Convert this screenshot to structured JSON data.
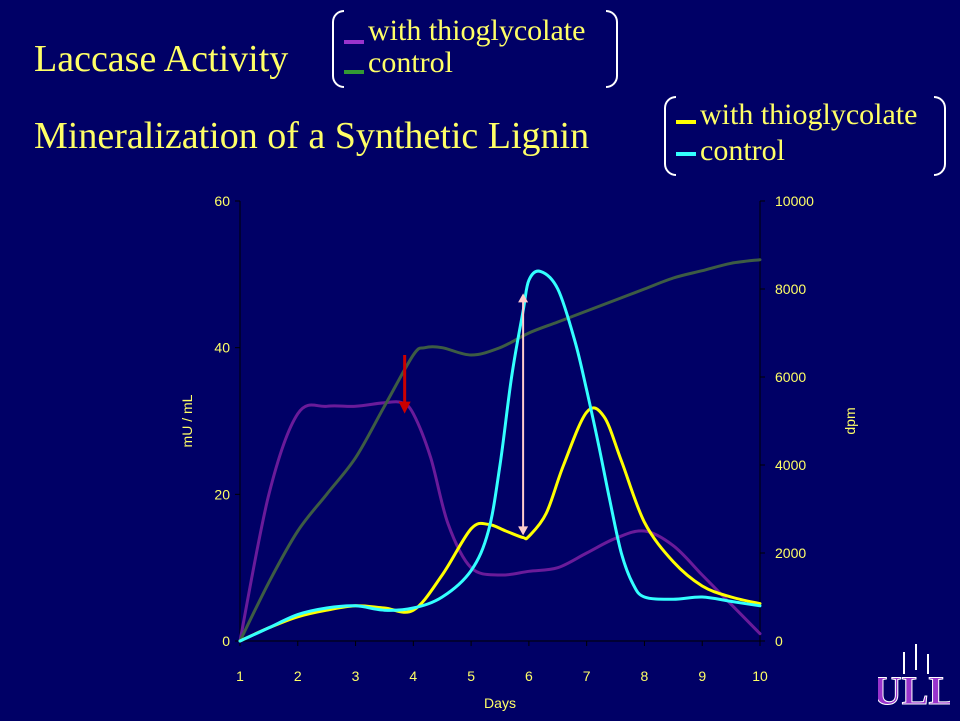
{
  "titles": {
    "laccase": "Laccase Activity",
    "mineralization": "Mineralization of a Synthetic Lignin"
  },
  "legend_laccase": [
    {
      "label": "with thioglycolate",
      "color": "#9933cc"
    },
    {
      "label": "control",
      "color": "#336633"
    }
  ],
  "legend_mineralization": [
    {
      "label": "with thioglycolate",
      "color": "#ffff00"
    },
    {
      "label": "control",
      "color": "#33ffff"
    }
  ],
  "logo_text": "ULL",
  "chart_data": {
    "type": "line",
    "xlabel": "Days",
    "ylabel_left": "mU / mL",
    "ylabel_right": "dpm",
    "x_ticks": [
      "1",
      "2",
      "3",
      "4",
      "5",
      "6",
      "7",
      "8",
      "9",
      "10"
    ],
    "xlim": [
      1,
      10
    ],
    "ylim_left": [
      0,
      60
    ],
    "ylim_right": [
      0,
      10000
    ],
    "y_ticks_left": [
      "0",
      "20",
      "40",
      "60"
    ],
    "y_ticks_right": [
      "0",
      "2000",
      "4000",
      "6000",
      "8000",
      "10000"
    ],
    "series": [
      {
        "name": "Laccase with thioglycolate",
        "axis": "left",
        "color": "#6a1b9a",
        "x": [
          1,
          1.5,
          2,
          2.5,
          3,
          3.5,
          3.8,
          4,
          4.3,
          4.6,
          5,
          5.5,
          6,
          6.5,
          7,
          7.5,
          8,
          8.5,
          9,
          9.5,
          10
        ],
        "y": [
          0,
          20,
          31,
          32,
          32,
          32.5,
          32.5,
          31,
          25,
          16,
          10,
          9,
          9.5,
          10,
          12,
          14,
          15,
          13,
          9,
          5,
          1
        ]
      },
      {
        "name": "Laccase control",
        "axis": "left",
        "color": "#3d5c44",
        "x": [
          1,
          1.5,
          2,
          2.5,
          3,
          3.5,
          4,
          4.2,
          4.5,
          5,
          5.5,
          6,
          6.5,
          7,
          7.5,
          8,
          8.5,
          9,
          9.5,
          10
        ],
        "y": [
          0,
          8,
          15,
          20,
          25,
          32,
          39,
          40,
          40,
          39,
          40,
          42,
          43.5,
          45,
          46.5,
          48,
          49.5,
          50.5,
          51.5,
          52
        ]
      },
      {
        "name": "Mineralization with thioglycolate",
        "axis": "right",
        "color": "#ffff00",
        "x": [
          1,
          1.5,
          2,
          2.5,
          3,
          3.5,
          4,
          4.5,
          5,
          5.3,
          5.6,
          5.9,
          6,
          6.3,
          6.6,
          7,
          7.3,
          7.6,
          8,
          8.5,
          9,
          9.5,
          10
        ],
        "y": [
          0,
          300,
          550,
          700,
          800,
          750,
          700,
          1500,
          2550,
          2650,
          2500,
          2350,
          2380,
          2900,
          4000,
          5200,
          5100,
          4100,
          2700,
          1800,
          1250,
          1000,
          850
        ]
      },
      {
        "name": "Mineralization control",
        "axis": "right",
        "color": "#33ffff",
        "x": [
          1,
          1.5,
          2,
          2.5,
          3,
          3.5,
          4,
          4.5,
          5,
          5.3,
          5.5,
          5.7,
          5.9,
          6,
          6.2,
          6.5,
          6.8,
          7,
          7.2,
          7.4,
          7.6,
          7.8,
          8,
          8.5,
          9,
          9.5,
          10
        ],
        "y": [
          0,
          300,
          600,
          750,
          800,
          700,
          750,
          1000,
          1600,
          2500,
          4000,
          6000,
          7500,
          8200,
          8400,
          8000,
          6800,
          5700,
          4500,
          3200,
          2000,
          1300,
          1000,
          950,
          1000,
          900,
          800
        ]
      }
    ],
    "annotations": [
      {
        "type": "arrow-down",
        "color": "#cc0000",
        "x": 3.85,
        "y_from": 39,
        "y_to": 31
      },
      {
        "type": "double-arrow",
        "color": "#ffcccc",
        "x": 5.9,
        "y_from": 2400,
        "y_to": 7900
      }
    ]
  }
}
